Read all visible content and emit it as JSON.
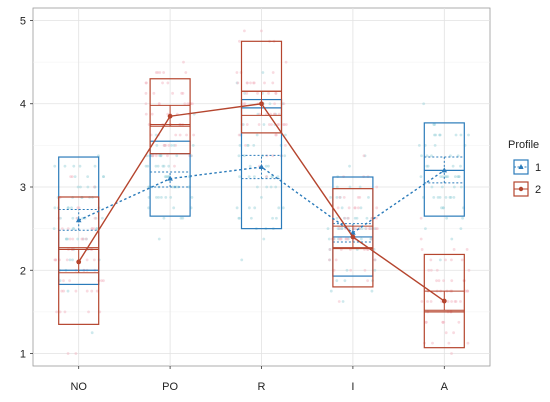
{
  "chart_data": {
    "type": "box",
    "categories": [
      "NO",
      "PO",
      "R",
      "I",
      "A"
    ],
    "ylim": [
      0.85,
      5.15
    ],
    "yticks": [
      1,
      2,
      3,
      4,
      5
    ],
    "grid": true,
    "legend": {
      "title": "Profile",
      "position": "right"
    },
    "series": [
      {
        "name": "1",
        "color": "#2b7bba",
        "line": "dotted",
        "marker": "triangle",
        "means": [
          2.6,
          3.1,
          3.24,
          2.45,
          3.2
        ],
        "mean_ci_low": [
          2.48,
          3.0,
          3.1,
          2.34,
          3.05
        ],
        "mean_ci_high": [
          2.73,
          3.18,
          3.38,
          2.56,
          3.36
        ],
        "box_q1": [
          1.83,
          2.65,
          2.5,
          1.93,
          2.65
        ],
        "box_median": [
          2.0,
          3.4,
          3.95,
          2.4,
          3.2
        ],
        "box_q3": [
          3.36,
          3.55,
          4.05,
          3.12,
          3.77
        ]
      },
      {
        "name": "2",
        "color": "#b5452e",
        "line": "solid",
        "marker": "circle",
        "means": [
          2.1,
          3.85,
          4.0,
          2.4,
          1.63
        ],
        "mean_ci_low": [
          1.97,
          3.73,
          3.86,
          2.26,
          1.52
        ],
        "mean_ci_high": [
          2.25,
          3.98,
          4.15,
          2.53,
          1.75
        ],
        "box_q1": [
          1.35,
          3.4,
          3.65,
          1.8,
          1.07
        ],
        "box_median": [
          2.27,
          3.75,
          4.15,
          2.27,
          1.5
        ],
        "box_q3": [
          2.88,
          4.3,
          4.75,
          2.98,
          2.19
        ]
      }
    ]
  },
  "legend_icon_names": [
    "triangle-marker-icon",
    "circle-marker-icon"
  ]
}
